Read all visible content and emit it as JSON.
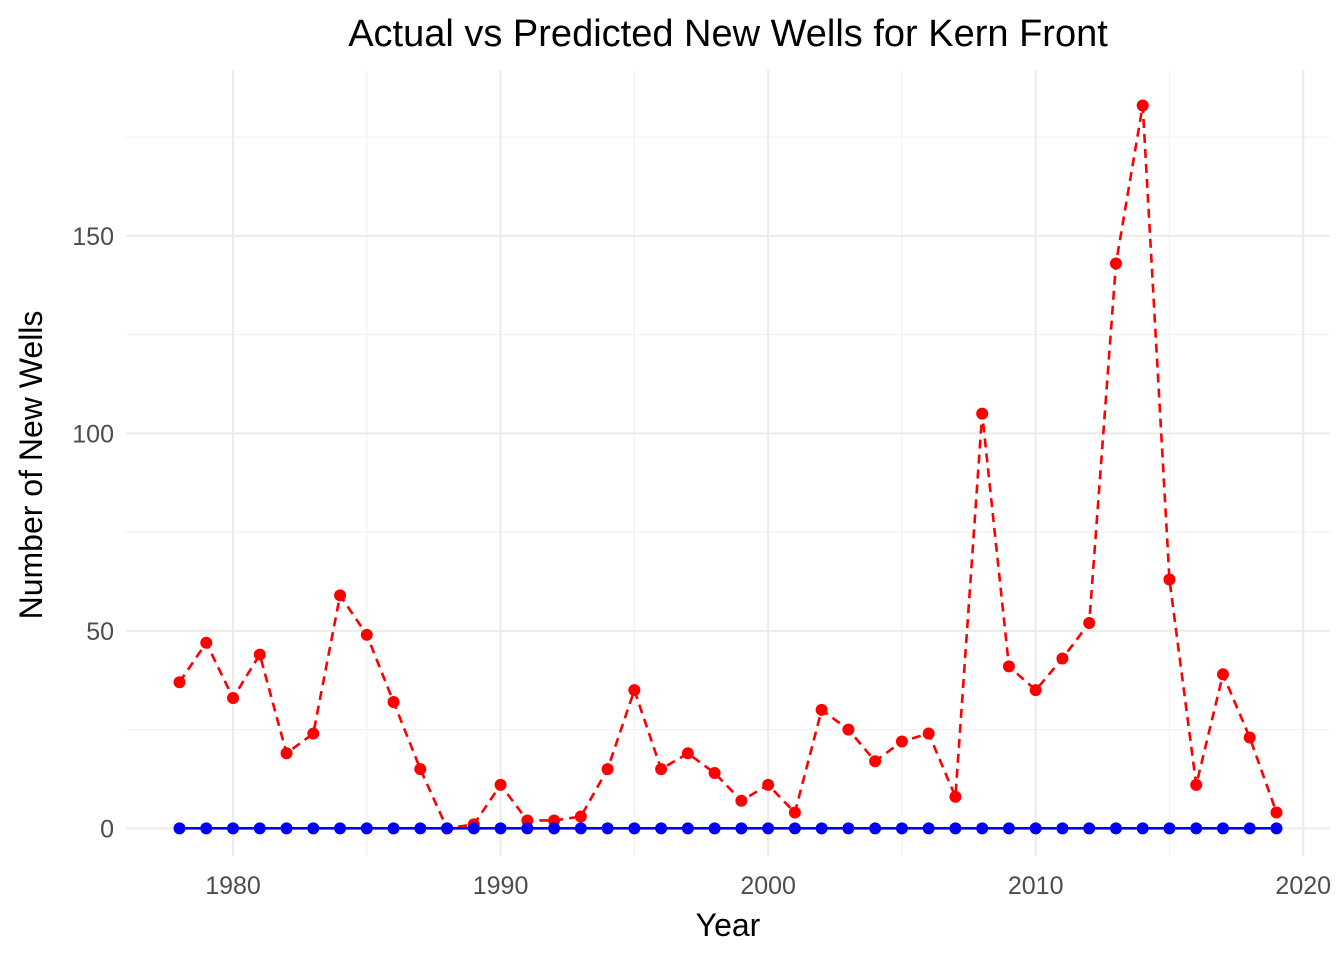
{
  "chart_data": {
    "type": "line",
    "title": "Actual vs Predicted New Wells for Kern Front",
    "xlabel": "Year",
    "ylabel": "Number of New Wells",
    "xlim": [
      1976,
      2021
    ],
    "ylim": [
      -7,
      192
    ],
    "x_ticks": [
      1980,
      1990,
      2000,
      2010,
      2020
    ],
    "y_ticks": [
      0,
      50,
      100,
      150
    ],
    "grid": true,
    "legend": "none",
    "x": [
      1978,
      1979,
      1980,
      1981,
      1982,
      1983,
      1984,
      1985,
      1986,
      1987,
      1988,
      1989,
      1990,
      1991,
      1992,
      1993,
      1994,
      1995,
      1996,
      1997,
      1998,
      1999,
      2000,
      2001,
      2002,
      2003,
      2004,
      2005,
      2006,
      2007,
      2008,
      2009,
      2010,
      2011,
      2012,
      2013,
      2014,
      2015,
      2016,
      2017,
      2018,
      2019
    ],
    "series": [
      {
        "color": "#ff0000",
        "style": "dashed",
        "values": [
          37,
          47,
          33,
          44,
          19,
          24,
          59,
          49,
          32,
          15,
          0,
          1,
          11,
          2,
          2,
          3,
          15,
          35,
          15,
          19,
          14,
          7,
          11,
          4,
          30,
          25,
          17,
          22,
          24,
          8,
          105,
          41,
          35,
          43,
          52,
          143,
          183,
          63,
          11,
          39,
          23,
          4
        ]
      },
      {
        "color": "#0000ff",
        "style": "solid",
        "values": [
          0,
          0,
          0,
          0,
          0,
          0,
          0,
          0,
          0,
          0,
          0,
          0,
          0,
          0,
          0,
          0,
          0,
          0,
          0,
          0,
          0,
          0,
          0,
          0,
          0,
          0,
          0,
          0,
          0,
          0,
          0,
          0,
          0,
          0,
          0,
          0,
          0,
          0,
          0,
          0,
          0,
          0
        ]
      }
    ]
  }
}
